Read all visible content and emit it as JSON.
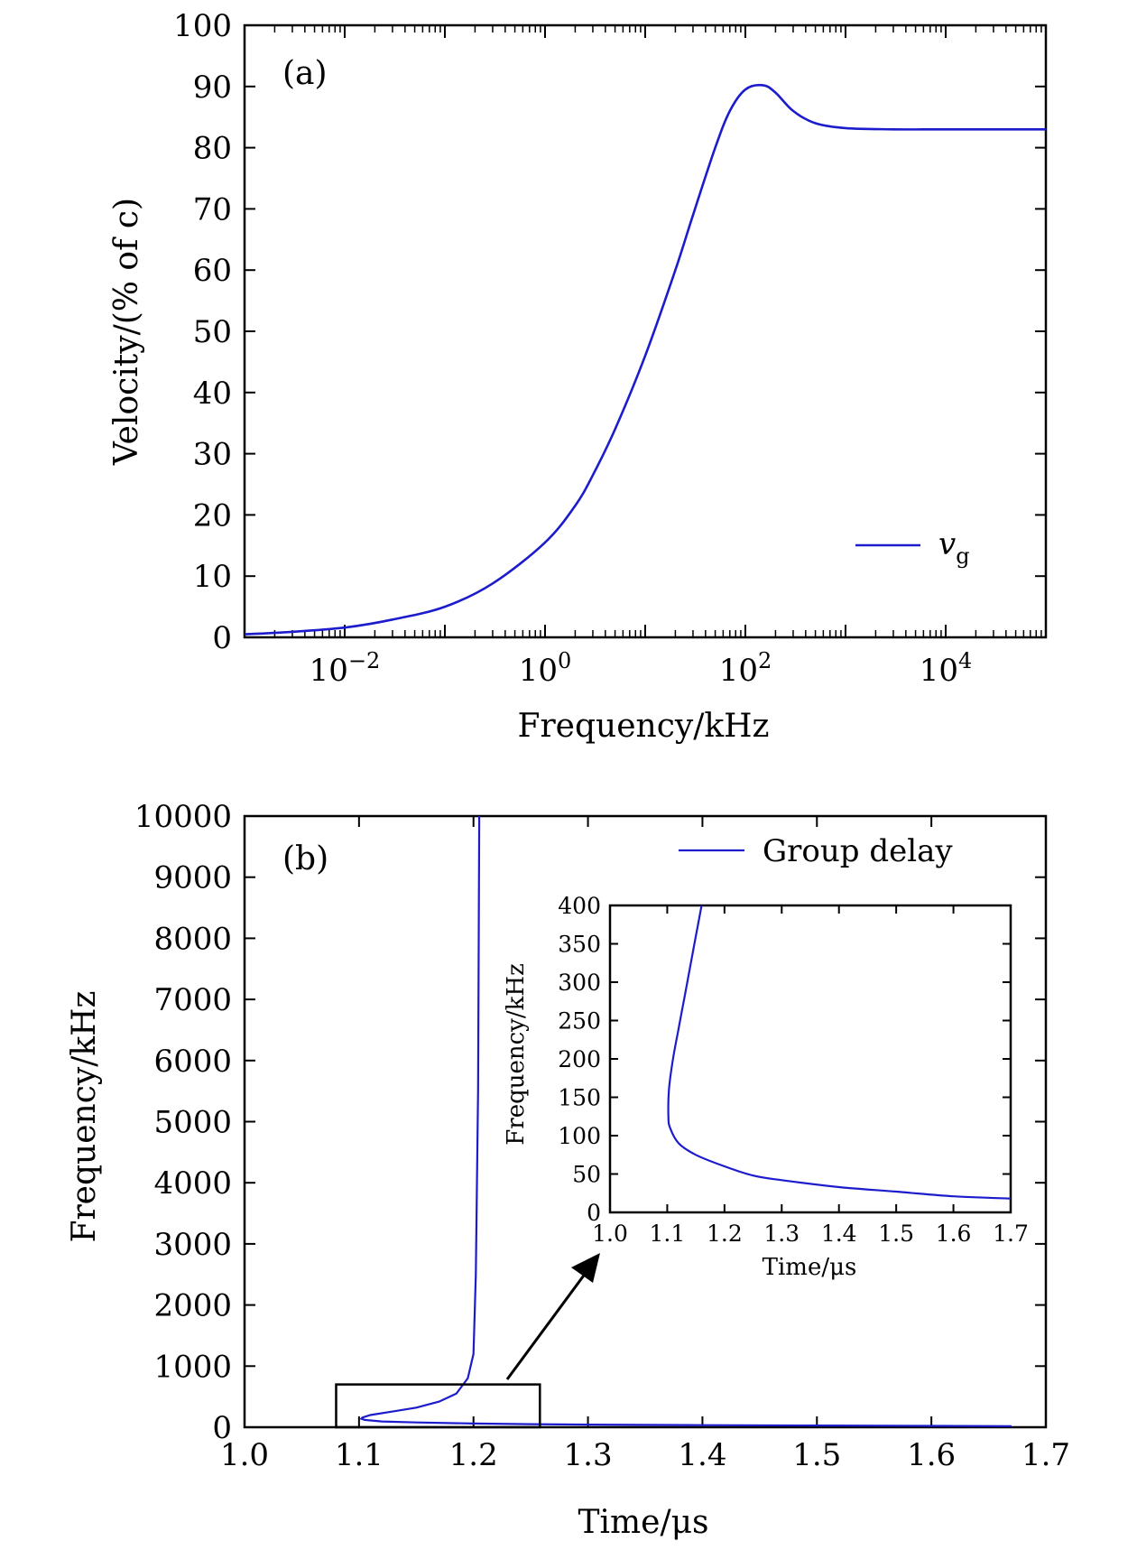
{
  "chart_data": [
    {
      "id": "a",
      "type": "line",
      "panel_label": "(a)",
      "xlabel": "Frequency/kHz",
      "ylabel": "Velocity/(% of  c)",
      "xscale": "log",
      "xlim": [
        0.001,
        100000
      ],
      "ylim": [
        0,
        100
      ],
      "xticks": [
        {
          "value": 0.01,
          "base": "10",
          "exp": "−2"
        },
        {
          "value": 1,
          "base": "10",
          "exp": "0"
        },
        {
          "value": 100,
          "base": "10",
          "exp": "2"
        },
        {
          "value": 10000,
          "base": "10",
          "exp": "4"
        }
      ],
      "yticks": [
        0,
        10,
        20,
        30,
        40,
        50,
        60,
        70,
        80,
        90,
        100
      ],
      "legend": {
        "position": "bottom-right",
        "entries": [
          {
            "label": "v",
            "sub": "g"
          }
        ]
      },
      "series": [
        {
          "name": "vg",
          "color": "#1c1ccc",
          "x": [
            0.001,
            0.003,
            0.01,
            0.03,
            0.1,
            0.3,
            1,
            2,
            3,
            5,
            10,
            20,
            30,
            50,
            70,
            100,
            150,
            200,
            300,
            500,
            1000,
            3000,
            10000,
            100000
          ],
          "y": [
            0.5,
            0.9,
            1.6,
            2.9,
            5.0,
            8.8,
            15.5,
            21.5,
            26.5,
            34.0,
            46.0,
            60.0,
            69.0,
            80.0,
            86.0,
            89.5,
            90.2,
            89.0,
            86.0,
            84.0,
            83.2,
            83.0,
            83.0,
            83.0
          ]
        }
      ]
    },
    {
      "id": "b",
      "type": "line",
      "panel_label": "(b)",
      "xlabel": "Time/μs",
      "ylabel": "Frequency/kHz",
      "xlim": [
        1.0,
        1.7
      ],
      "ylim": [
        0,
        10000
      ],
      "xticks": [
        "1.0",
        "1.1",
        "1.2",
        "1.3",
        "1.4",
        "1.5",
        "1.6",
        "1.7"
      ],
      "yticks": [
        "0",
        "1000",
        "2000",
        "3000",
        "4000",
        "5000",
        "6000",
        "7000",
        "8000",
        "9000",
        "10000"
      ],
      "legend": {
        "position": "top-right",
        "entries": [
          {
            "label": "Group delay"
          }
        ]
      },
      "zoom_box": {
        "x": [
          1.08,
          1.258
        ],
        "y": [
          0,
          700
        ]
      },
      "series": [
        {
          "name": "Group delay",
          "color": "#1c1ccc",
          "x": [
            1.67,
            1.6,
            1.5,
            1.4,
            1.3,
            1.25,
            1.2,
            1.15,
            1.12,
            1.105,
            1.102,
            1.103,
            1.11,
            1.13,
            1.15,
            1.17,
            1.185,
            1.195,
            1.2,
            1.202,
            1.204,
            1.205
          ],
          "y": [
            18,
            22,
            28,
            34,
            43,
            50,
            60,
            78,
            95,
            120,
            140,
            160,
            200,
            260,
            320,
            420,
            550,
            800,
            1200,
            2500,
            5500,
            10000
          ]
        }
      ],
      "inset": {
        "xlabel": "Time/μs",
        "ylabel": "Frequency/kHz",
        "xlim": [
          1.0,
          1.7
        ],
        "ylim": [
          0,
          400
        ],
        "xticks": [
          "1.0",
          "1.1",
          "1.2",
          "1.3",
          "1.4",
          "1.5",
          "1.6",
          "1.7"
        ],
        "yticks": [
          "0",
          "50",
          "100",
          "150",
          "200",
          "250",
          "300",
          "350",
          "400"
        ],
        "x": [
          1.7,
          1.6,
          1.5,
          1.4,
          1.3,
          1.25,
          1.2,
          1.15,
          1.12,
          1.105,
          1.102,
          1.103,
          1.11,
          1.12,
          1.13,
          1.14,
          1.15,
          1.16
        ],
        "y": [
          18,
          21,
          27,
          33,
          42,
          48,
          60,
          75,
          90,
          110,
          125,
          160,
          200,
          240,
          280,
          320,
          360,
          400
        ]
      }
    }
  ]
}
